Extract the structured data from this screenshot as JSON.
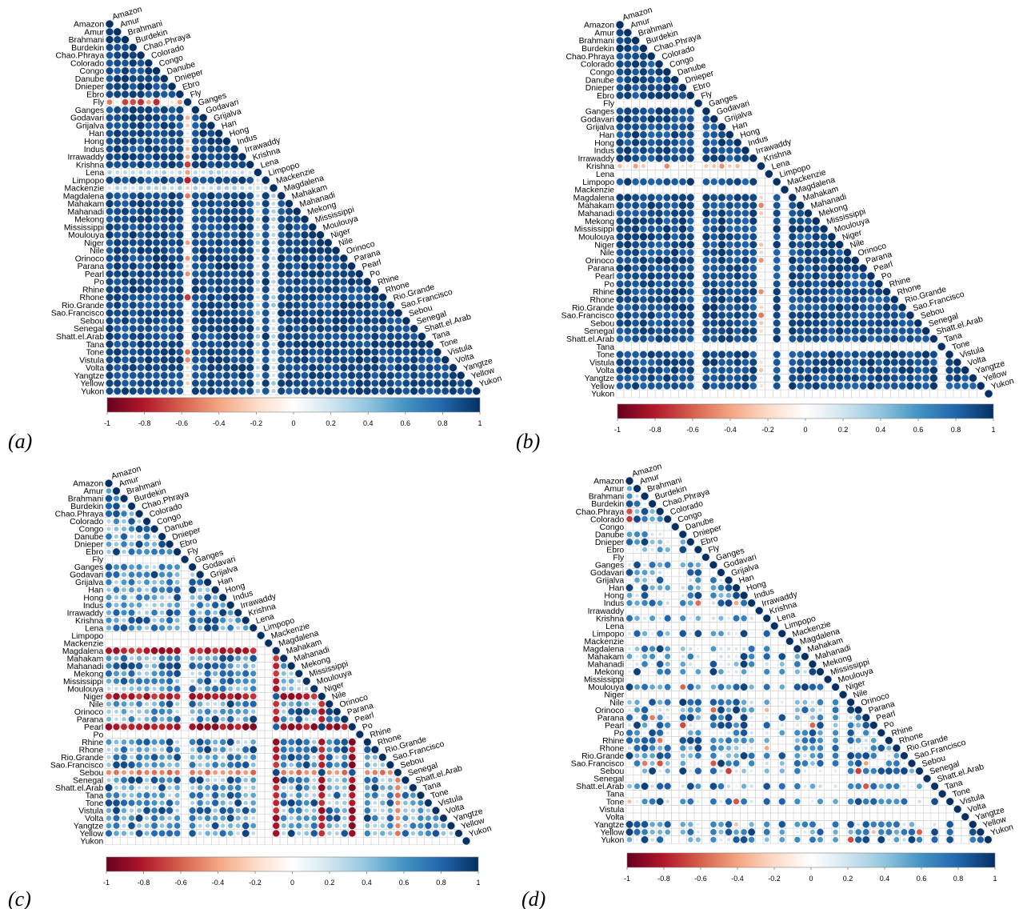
{
  "figure": {
    "rivers": [
      "Amazon",
      "Amur",
      "Brahmani",
      "Burdekin",
      "Chao.Phraya",
      "Colorado",
      "Congo",
      "Danube",
      "Dnieper",
      "Ebro",
      "Fly",
      "Ganges",
      "Godavari",
      "Grijalva",
      "Han",
      "Hong",
      "Indus",
      "Irrawaddy",
      "Krishna",
      "Lena",
      "Limpopo",
      "Mackenzie",
      "Magdalena",
      "Mahakam",
      "Mahanadi",
      "Mekong",
      "Mississippi",
      "Moulouya",
      "Niger",
      "Nile",
      "Orinoco",
      "Parana",
      "Pearl",
      "Po",
      "Rhine",
      "Rhone",
      "Rio.Grande",
      "Sao.Francisco",
      "Sebou",
      "Senegal",
      "Shatt.el.Arab",
      "Tana",
      "Tone",
      "Vistula",
      "Volta",
      "Yangtze",
      "Yellow",
      "Yukon"
    ],
    "colorbar": {
      "ticks": [
        "-1",
        "-0.8",
        "-0.6",
        "-0.4",
        "-0.2",
        "0",
        "0.2",
        "0.4",
        "0.6",
        "0.8",
        "1"
      ],
      "colors": [
        "#67001f",
        "#b2182b",
        "#d6604d",
        "#f4a582",
        "#fddbc7",
        "#ffffff",
        "#d1e5f0",
        "#92c5de",
        "#4393c3",
        "#2166ac",
        "#053061"
      ]
    },
    "panels": [
      {
        "label": "(a)"
      },
      {
        "label": "(b)"
      },
      {
        "label": "(c)"
      },
      {
        "label": "(d)"
      }
    ]
  },
  "chart_data": [
    {
      "type": "heatmap",
      "subtype": "correlation-matrix-lower-triangle-circles",
      "panel": "(a)",
      "value_range": [
        -1,
        1
      ],
      "description_of_values": "Near-uniform strong positive correlations (~0.9) among all rivers; weak rows/columns at Fly (values between -0.8 and 0.2), Lena and Mackenzie (~0.3)",
      "weak_rivers": {
        "Fly": 0.0,
        "Lena": 0.3,
        "Mackenzie": 0.3
      },
      "typical_value": 0.92
    },
    {
      "type": "heatmap",
      "subtype": "correlation-matrix-lower-triangle-circles",
      "panel": "(b)",
      "value_range": [
        -1,
        1
      ],
      "description_of_values": "Strong positive correlations (~0.9); empty rows/columns (no data) at Fly, Lena, Mackenzie, Tana, Yukon; Krishna weak and partly negative",
      "missing_rivers": [
        "Fly",
        "Lena",
        "Mackenzie",
        "Tana",
        "Yukon"
      ],
      "weak_rivers": {
        "Krishna": -0.2
      },
      "typical_value": 0.9
    },
    {
      "type": "heatmap",
      "subtype": "correlation-matrix-lower-triangle-circles",
      "panel": "(c)",
      "value_range": [
        -1,
        1
      ],
      "description_of_values": "Mixed correlations; strongly negative rows for Magdalena, Niger, Pearl (~-0.9) and Sebou (~-0.6) against many rivers; empty rows for Fly, Limpopo, Mackenzie, Po, Yukon",
      "missing_rivers": [
        "Fly",
        "Limpopo",
        "Mackenzie",
        "Po",
        "Yukon"
      ],
      "negative_rivers": {
        "Magdalena": -0.9,
        "Niger": -0.9,
        "Pearl": -0.95,
        "Sebou": -0.6
      },
      "typical_value": 0.75
    },
    {
      "type": "heatmap",
      "subtype": "correlation-matrix-lower-triangle-circles",
      "panel": "(d)",
      "value_range": [
        -1,
        1
      ],
      "description_of_values": "Sparse correlations of mixed strength; many rivers without data (empty rows) including Congo, Fly, Lena, Tana, Vistula, Volta",
      "missing_rivers": [
        "Congo",
        "Fly",
        "Irrawaddy",
        "Lena",
        "Mackenzie",
        "Mississippi",
        "Niger",
        "Senegal",
        "Tana",
        "Vistula",
        "Volta"
      ],
      "typical_value": 0.5
    }
  ]
}
